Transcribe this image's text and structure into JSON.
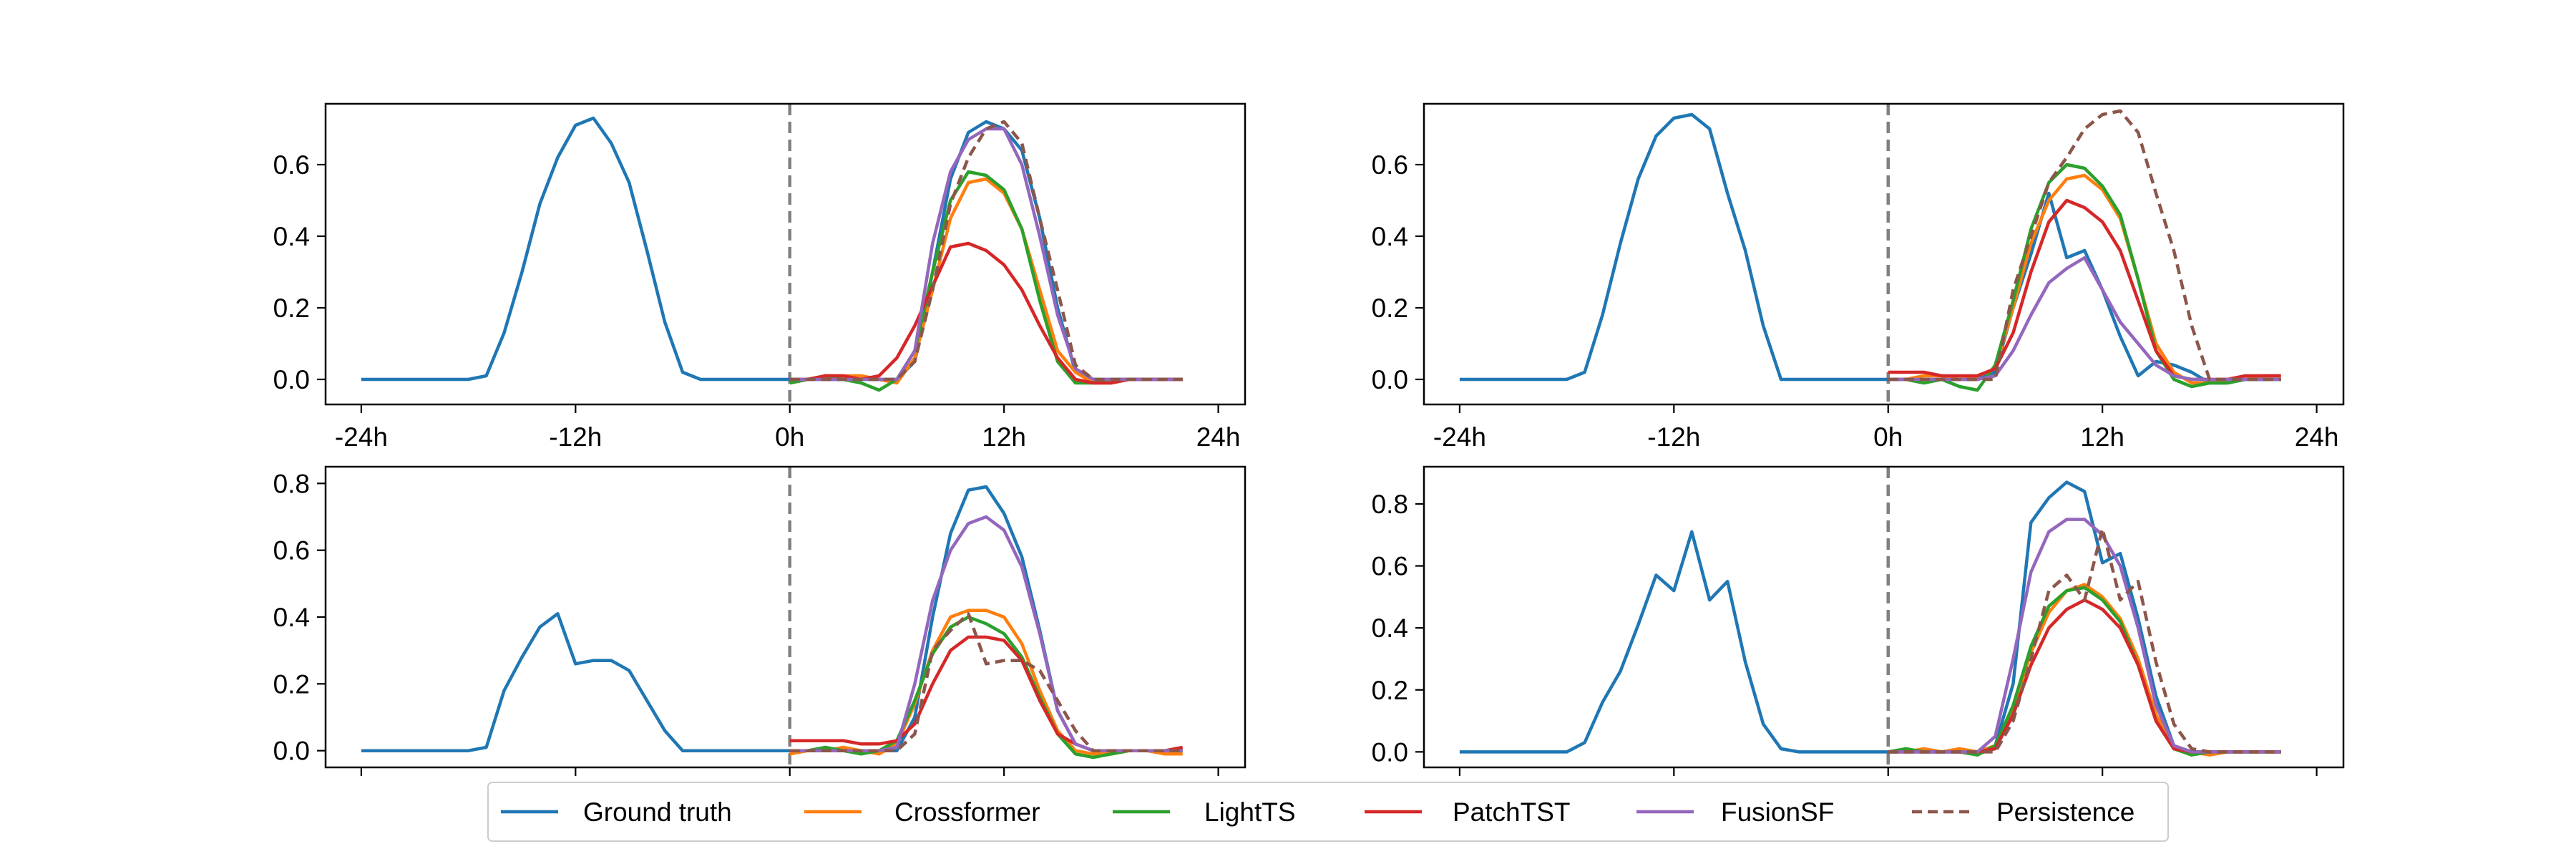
{
  "figure": {
    "legend_position": "bottom-center",
    "legend_labels": {
      "ground_truth": "Ground truth",
      "crossformer": "Crossformer",
      "lightts": "LightTS",
      "patchtst": "PatchTST",
      "fusionsf": "FusionSF",
      "persistence": "Persistence"
    }
  },
  "chart_data": {
    "type": "line",
    "x_tick_labels": [
      "-24h",
      "-12h",
      "0h",
      "12h",
      "24h"
    ],
    "x_ticks": [
      -24,
      -12,
      0,
      12,
      24
    ],
    "xlim": [
      -26,
      25.5
    ],
    "vline_x": 0,
    "series_styles": {
      "ground_truth": {
        "name": "Ground truth",
        "color": "#1f77b4",
        "dashed": false
      },
      "crossformer": {
        "name": "Crossformer",
        "color": "#ff7f0e",
        "dashed": false
      },
      "lightts": {
        "name": "LightTS",
        "color": "#2ca02c",
        "dashed": false
      },
      "patchtst": {
        "name": "PatchTST",
        "color": "#d62728",
        "dashed": false
      },
      "fusionsf": {
        "name": "FusionSF",
        "color": "#9467bd",
        "dashed": false
      },
      "persistence": {
        "name": "Persistence",
        "color": "#8c564b",
        "dashed": true
      }
    },
    "panels": [
      {
        "id": "top-left",
        "ylim": [
          -0.07,
          0.77
        ],
        "y_ticks": [
          0.0,
          0.2,
          0.4,
          0.6
        ],
        "y_tick_labels": [
          "0.0",
          "0.2",
          "0.4",
          "0.6"
        ],
        "show_x_labels": true,
        "series": {
          "ground_truth": {
            "past": [
              0,
              0,
              0,
              0,
              0,
              0,
              0,
              0.01,
              0.13,
              0.3,
              0.49,
              0.62,
              0.71,
              0.73,
              0.66,
              0.55,
              0.36,
              0.16,
              0.02,
              0,
              0,
              0,
              0,
              0
            ],
            "future": [
              0,
              0,
              0,
              0,
              0,
              0,
              0,
              0.05,
              0.3,
              0.56,
              0.69,
              0.72,
              0.7,
              0.64,
              0.45,
              0.2,
              0.02,
              0,
              0,
              0,
              0,
              0,
              0
            ]
          },
          "crossformer": {
            "future": [
              -0.01,
              0,
              0.01,
              0.01,
              0.01,
              0,
              -0.01,
              0.06,
              0.25,
              0.45,
              0.55,
              0.56,
              0.52,
              0.42,
              0.25,
              0.08,
              0.02,
              -0.01,
              -0.01,
              0,
              0,
              0,
              0
            ]
          },
          "lightts": {
            "future": [
              -0.01,
              0,
              0.01,
              0,
              -0.01,
              -0.03,
              0,
              0.08,
              0.3,
              0.5,
              0.58,
              0.57,
              0.53,
              0.42,
              0.22,
              0.05,
              -0.01,
              -0.01,
              0,
              0,
              0,
              0,
              0
            ]
          },
          "patchtst": {
            "future": [
              0,
              0,
              0.01,
              0.01,
              0,
              0.01,
              0.06,
              0.15,
              0.26,
              0.37,
              0.38,
              0.36,
              0.32,
              0.25,
              0.15,
              0.06,
              0,
              -0.01,
              -0.01,
              0,
              0,
              0,
              0
            ]
          },
          "fusionsf": {
            "future": [
              0,
              0,
              0,
              0,
              0,
              0,
              0,
              0.08,
              0.38,
              0.58,
              0.67,
              0.7,
              0.7,
              0.6,
              0.4,
              0.18,
              0.03,
              0,
              0,
              0,
              0,
              0,
              0
            ]
          },
          "persistence": {
            "future": [
              0,
              0,
              0,
              0,
              0,
              0,
              0,
              0.05,
              0.25,
              0.49,
              0.62,
              0.7,
              0.72,
              0.66,
              0.45,
              0.25,
              0.04,
              0,
              0,
              0,
              0,
              0,
              0
            ]
          }
        }
      },
      {
        "id": "top-right",
        "ylim": [
          -0.07,
          0.77
        ],
        "y_ticks": [
          0.0,
          0.2,
          0.4,
          0.6
        ],
        "y_tick_labels": [
          "0.0",
          "0.2",
          "0.4",
          "0.6"
        ],
        "show_x_labels": true,
        "series": {
          "ground_truth": {
            "past": [
              0,
              0,
              0,
              0,
              0,
              0,
              0,
              0.02,
              0.18,
              0.38,
              0.56,
              0.68,
              0.73,
              0.74,
              0.7,
              0.52,
              0.36,
              0.15,
              0,
              0,
              0,
              0,
              0,
              0
            ],
            "future": [
              0,
              0,
              0,
              0,
              0,
              0,
              0.02,
              0.2,
              0.35,
              0.52,
              0.34,
              0.36,
              0.25,
              0.12,
              0.01,
              0.05,
              0.04,
              0.02,
              -0.01,
              -0.01,
              0,
              0,
              0
            ]
          },
          "crossformer": {
            "future": [
              0,
              0,
              0.01,
              0.01,
              0,
              0.01,
              0.03,
              0.2,
              0.38,
              0.5,
              0.56,
              0.57,
              0.53,
              0.45,
              0.28,
              0.1,
              0.02,
              -0.01,
              -0.01,
              0,
              0,
              0.01,
              0.01
            ]
          },
          "lightts": {
            "future": [
              0,
              0,
              -0.01,
              0,
              -0.02,
              -0.03,
              0.04,
              0.22,
              0.42,
              0.55,
              0.6,
              0.59,
              0.54,
              0.46,
              0.28,
              0.08,
              0,
              -0.02,
              -0.01,
              -0.01,
              0,
              0,
              0
            ]
          },
          "patchtst": {
            "future": [
              0.02,
              0.02,
              0.02,
              0.01,
              0.01,
              0.01,
              0.03,
              0.13,
              0.3,
              0.44,
              0.5,
              0.48,
              0.44,
              0.36,
              0.22,
              0.08,
              0.01,
              0,
              0,
              0,
              0.01,
              0.01,
              0.01
            ]
          },
          "fusionsf": {
            "future": [
              0,
              0,
              0,
              0,
              0,
              0,
              0.01,
              0.08,
              0.18,
              0.27,
              0.31,
              0.34,
              0.25,
              0.16,
              0.1,
              0.04,
              0.01,
              0,
              0,
              0,
              0,
              0,
              0
            ]
          },
          "persistence": {
            "future": [
              0,
              0,
              0,
              0,
              0,
              0,
              0,
              0.25,
              0.4,
              0.55,
              0.62,
              0.7,
              0.74,
              0.75,
              0.69,
              0.52,
              0.36,
              0.15,
              0,
              0,
              0,
              0,
              0
            ]
          }
        }
      },
      {
        "id": "bottom-left",
        "ylim": [
          -0.05,
          0.85
        ],
        "y_ticks": [
          0.0,
          0.2,
          0.4,
          0.6,
          0.8
        ],
        "y_tick_labels": [
          "0.0",
          "0.2",
          "0.4",
          "0.6",
          "0.8"
        ],
        "show_x_labels": false,
        "series": {
          "ground_truth": {
            "past": [
              0,
              0,
              0,
              0,
              0,
              0,
              0,
              0.01,
              0.18,
              0.28,
              0.37,
              0.41,
              0.26,
              0.27,
              0.27,
              0.24,
              0.15,
              0.06,
              0,
              0,
              0,
              0,
              0,
              0
            ],
            "future": [
              0,
              0,
              0,
              0,
              0,
              0,
              0,
              0.1,
              0.4,
              0.65,
              0.78,
              0.79,
              0.71,
              0.58,
              0.36,
              0.12,
              0.02,
              0,
              0,
              0,
              0,
              0,
              0
            ]
          },
          "crossformer": {
            "future": [
              -0.01,
              0,
              0,
              0.01,
              0,
              -0.01,
              0.02,
              0.14,
              0.3,
              0.4,
              0.42,
              0.42,
              0.4,
              0.32,
              0.18,
              0.06,
              0,
              -0.01,
              -0.01,
              0,
              0,
              -0.01,
              -0.01
            ]
          },
          "lightts": {
            "future": [
              0,
              0,
              0.01,
              0,
              -0.01,
              0,
              0.03,
              0.15,
              0.29,
              0.37,
              0.4,
              0.38,
              0.35,
              0.28,
              0.16,
              0.05,
              -0.01,
              -0.02,
              -0.01,
              0,
              0,
              0,
              0
            ]
          },
          "patchtst": {
            "future": [
              0.03,
              0.03,
              0.03,
              0.03,
              0.02,
              0.02,
              0.03,
              0.08,
              0.2,
              0.3,
              0.34,
              0.34,
              0.33,
              0.27,
              0.15,
              0.05,
              0.02,
              0,
              0,
              0,
              0,
              0,
              0.01
            ]
          },
          "fusionsf": {
            "future": [
              0,
              0,
              0,
              0,
              0,
              0,
              0.01,
              0.2,
              0.45,
              0.6,
              0.68,
              0.7,
              0.66,
              0.55,
              0.35,
              0.12,
              0.02,
              0,
              0,
              0,
              0,
              0,
              0
            ]
          },
          "persistence": {
            "future": [
              0,
              0,
              0,
              0,
              0,
              0,
              0,
              0.05,
              0.3,
              0.36,
              0.41,
              0.26,
              0.27,
              0.27,
              0.24,
              0.15,
              0.06,
              0,
              0,
              0,
              0,
              0,
              0
            ]
          }
        }
      },
      {
        "id": "bottom-right",
        "ylim": [
          -0.05,
          0.92
        ],
        "y_ticks": [
          0.0,
          0.2,
          0.4,
          0.6,
          0.8
        ],
        "y_tick_labels": [
          "0.0",
          "0.2",
          "0.4",
          "0.6",
          "0.8"
        ],
        "show_x_labels": false,
        "series": {
          "ground_truth": {
            "past": [
              0,
              0,
              0,
              0,
              0,
              0,
              0,
              0.03,
              0.16,
              0.26,
              0.41,
              0.57,
              0.52,
              0.71,
              0.49,
              0.55,
              0.29,
              0.09,
              0.01,
              0,
              0,
              0,
              0,
              0
            ],
            "future": [
              0,
              0,
              0,
              0,
              0,
              0,
              0.02,
              0.22,
              0.74,
              0.82,
              0.87,
              0.84,
              0.61,
              0.64,
              0.43,
              0.18,
              0.02,
              0,
              0,
              0,
              0,
              0,
              0
            ]
          },
          "crossformer": {
            "future": [
              0,
              0,
              0.01,
              0,
              0.01,
              0,
              0.02,
              0.14,
              0.32,
              0.45,
              0.52,
              0.54,
              0.5,
              0.43,
              0.3,
              0.12,
              0.02,
              0,
              -0.01,
              0,
              0,
              0,
              0
            ]
          },
          "lightts": {
            "future": [
              0,
              0.01,
              0,
              0,
              0,
              -0.01,
              0.02,
              0.15,
              0.34,
              0.47,
              0.52,
              0.53,
              0.49,
              0.42,
              0.28,
              0.1,
              0.01,
              -0.01,
              0,
              0,
              0,
              0,
              0
            ]
          },
          "patchtst": {
            "future": [
              0,
              0,
              0,
              0,
              0,
              0,
              0.01,
              0.12,
              0.28,
              0.4,
              0.46,
              0.49,
              0.46,
              0.4,
              0.28,
              0.1,
              0.01,
              0,
              0,
              0,
              0,
              0,
              0
            ]
          },
          "fusionsf": {
            "future": [
              0,
              0,
              0,
              0,
              0,
              0,
              0.05,
              0.3,
              0.58,
              0.71,
              0.75,
              0.75,
              0.7,
              0.6,
              0.4,
              0.15,
              0.02,
              0,
              0,
              0,
              0,
              0,
              0
            ]
          },
          "persistence": {
            "future": [
              0,
              0,
              0,
              0,
              0,
              0,
              0,
              0.1,
              0.3,
              0.52,
              0.57,
              0.49,
              0.72,
              0.49,
              0.55,
              0.29,
              0.09,
              0.01,
              0,
              0,
              0,
              0,
              0
            ]
          }
        }
      }
    ]
  }
}
